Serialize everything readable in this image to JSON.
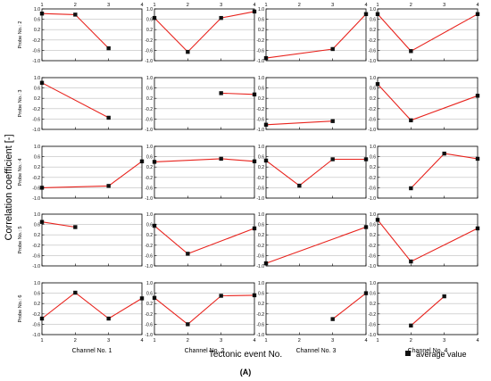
{
  "figure": {
    "ylabel": "Correlation coefficient [-]",
    "xlabel": "Tectonic event No.",
    "legend_label": "average value",
    "panel_label": "(A)"
  },
  "colors": {
    "line": "#e8231d",
    "marker": "#111111",
    "grid": "#bdbdbd",
    "frame": "#000000"
  },
  "chart_data": {
    "type": "line",
    "layout": "grid of 5 rows x 4 columns",
    "x": [
      1,
      2,
      3,
      4
    ],
    "xlim": [
      1,
      4
    ],
    "ylim": [
      -1.0,
      1.0
    ],
    "x_ticks": [
      "1",
      "2",
      "3",
      "4"
    ],
    "y_ticks": [
      "-1.0",
      "-0.6",
      "-0.2",
      "0.2",
      "0.6",
      "1.0"
    ],
    "grid": true,
    "legend_position": "bottom-right",
    "columns": [
      "Channel No. 1",
      "Channel No. 2",
      "Channel No. 3",
      "Channel No. 4"
    ],
    "rows": [
      "Probe No.: 2",
      "Probe No.: 3",
      "Probe No.: 4",
      "Probe No.: 5",
      "Probe No.: 6"
    ],
    "panels": [
      [
        {
          "values": [
            0.82,
            0.78,
            -0.52,
            null
          ]
        },
        {
          "values": [
            0.65,
            -0.66,
            0.65,
            0.9
          ]
        },
        {
          "values": [
            -0.9,
            null,
            -0.55,
            0.8
          ]
        },
        {
          "values": [
            0.8,
            -0.63,
            null,
            0.8
          ]
        }
      ],
      [
        {
          "values": [
            0.8,
            null,
            -0.55,
            null
          ]
        },
        {
          "values": [
            null,
            null,
            0.4,
            0.35
          ]
        },
        {
          "values": [
            -0.82,
            null,
            -0.68,
            null
          ]
        },
        {
          "values": [
            0.75,
            -0.65,
            null,
            0.3
          ]
        }
      ],
      [
        {
          "values": [
            -0.6,
            null,
            -0.53,
            0.42
          ]
        },
        {
          "values": [
            0.4,
            null,
            0.52,
            0.42
          ]
        },
        {
          "values": [
            0.45,
            -0.52,
            0.5,
            0.5
          ]
        },
        {
          "values": [
            null,
            -0.62,
            0.72,
            0.52
          ]
        }
      ],
      [
        {
          "values": [
            0.7,
            0.5,
            null,
            null
          ]
        },
        {
          "values": [
            0.55,
            -0.53,
            null,
            0.45
          ]
        },
        {
          "values": [
            -0.9,
            null,
            null,
            0.5
          ]
        },
        {
          "values": [
            0.78,
            -0.83,
            null,
            0.45
          ]
        }
      ],
      [
        {
          "values": [
            -0.38,
            0.62,
            -0.38,
            0.4
          ]
        },
        {
          "values": [
            0.42,
            -0.6,
            0.5,
            0.52
          ]
        },
        {
          "values": [
            null,
            null,
            -0.4,
            0.6
          ]
        },
        {
          "values": [
            null,
            -0.65,
            0.48,
            null
          ]
        }
      ]
    ]
  }
}
